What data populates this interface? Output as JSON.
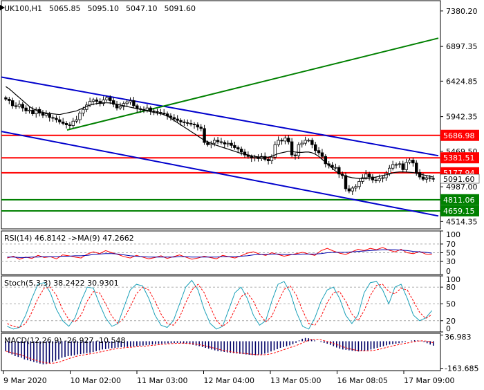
{
  "chart_data": [
    {
      "panel": "price",
      "type": "candlestick",
      "symbol": "UK100,H1",
      "ohlc_header": [
        "5065.85",
        "5095.10",
        "5047.10",
        "5091.60"
      ],
      "ylim": [
        4414,
        7520
      ],
      "y_ticks": [
        "7380.20",
        "6897.35",
        "6424.85",
        "5942.35",
        "5469.50",
        "4987.00",
        "4514.35"
      ],
      "current_price_label": "5091.60",
      "horizontal_levels": [
        {
          "value": 5686.98,
          "label": "5686.98",
          "color": "#ff0000"
        },
        {
          "value": 5381.51,
          "label": "5381.51",
          "color": "#ff0000"
        },
        {
          "value": 5177.94,
          "label": "5177.94",
          "color": "#ff0000"
        },
        {
          "value": 4811.06,
          "label": "4811.06",
          "color": "#008000"
        },
        {
          "value": 4659.15,
          "label": "4659.15",
          "color": "#008000"
        }
      ],
      "trendlines": [
        {
          "name": "channel-upper",
          "color": "#0000cc",
          "points": [
            [
              0,
              6480
            ],
            [
              632,
              5410
            ]
          ]
        },
        {
          "name": "channel-lower",
          "color": "#0000cc",
          "points": [
            [
              0,
              5740
            ],
            [
              632,
              4590
            ]
          ]
        },
        {
          "name": "support-rising",
          "color": "#008000",
          "points": [
            [
              95,
              5760
            ],
            [
              632,
              7010
            ]
          ]
        }
      ],
      "close_path": [
        6180,
        6160,
        6090,
        6080,
        6110,
        6060,
        6020,
        6030,
        5980,
        6040,
        5990,
        5960,
        5980,
        5930,
        5920,
        5900,
        5870,
        5850,
        5830,
        5820,
        5880,
        5900,
        5990,
        6040,
        6100,
        6150,
        6170,
        6150,
        6120,
        6170,
        6200,
        6160,
        6110,
        6060,
        6080,
        6120,
        6140,
        6160,
        6090,
        6050,
        6040,
        6030,
        6060,
        6020,
        6010,
        6000,
        5990,
        5980,
        5950,
        5930,
        5910,
        5890,
        5870,
        5860,
        5850,
        5840,
        5830,
        5800,
        5780,
        5590,
        5560,
        5580,
        5620,
        5600,
        5590,
        5570,
        5580,
        5550,
        5520,
        5500,
        5460,
        5420,
        5400,
        5380,
        5390,
        5370,
        5400,
        5360,
        5340,
        5390,
        5560,
        5620,
        5610,
        5650,
        5600,
        5420,
        5410,
        5560,
        5580,
        5620,
        5620,
        5560,
        5480,
        5450,
        5400,
        5300,
        5280,
        5250,
        5250,
        5160,
        5140,
        4960,
        4930,
        4970,
        4990,
        5060,
        5110,
        5160,
        5120,
        5080,
        5070,
        5100,
        5110,
        5170,
        5240,
        5290,
        5290,
        5300,
        5220,
        5320,
        5350,
        5310,
        5180,
        5120,
        5090,
        5110,
        5100,
        5090
      ],
      "moving_average_path": [
        6350,
        6320,
        6280,
        6240,
        6200,
        6160,
        6120,
        6080,
        6050,
        6030,
        6010,
        6000,
        5990,
        5985,
        5980,
        5975,
        5970,
        5980,
        5990,
        6000,
        6010,
        6020,
        6040,
        6060,
        6080,
        6100,
        6110,
        6120,
        6125,
        6130,
        6130,
        6128,
        6120,
        6110,
        6100,
        6090,
        6080,
        6070,
        6060,
        6050,
        6040,
        6030,
        6020,
        6010,
        6000,
        5990,
        5980,
        5970,
        5950,
        5920,
        5890,
        5860,
        5830,
        5800,
        5770,
        5740,
        5710,
        5680,
        5650,
        5620,
        5600,
        5580,
        5560,
        5545,
        5530,
        5515,
        5500,
        5485,
        5470,
        5455,
        5440,
        5430,
        5420,
        5410,
        5400,
        5395,
        5392,
        5390,
        5392,
        5400,
        5420,
        5440,
        5450,
        5460,
        5470,
        5470,
        5460,
        5455,
        5455,
        5460,
        5460,
        5450,
        5430,
        5400,
        5360,
        5320,
        5280,
        5240,
        5200,
        5170,
        5150,
        5130,
        5120,
        5110,
        5105,
        5100,
        5100,
        5100,
        5105,
        5110,
        5120,
        5130,
        5140,
        5150,
        5160,
        5175,
        5185,
        5190,
        5190,
        5188,
        5185,
        5180,
        5170,
        5160,
        5150,
        5140,
        5130,
        5120
      ]
    },
    {
      "panel": "rsi",
      "type": "line",
      "header_text": "RSI(14) 46.8142 ->MA(9) 47.2662",
      "ylim": [
        0,
        100
      ],
      "y_ticks": [
        "100",
        "70",
        "50",
        "30",
        "0"
      ],
      "levels": [
        70,
        50,
        30
      ],
      "series": [
        {
          "color": "#ff0000",
          "values": [
            38,
            42,
            35,
            40,
            37,
            44,
            39,
            41,
            36,
            45,
            43,
            40,
            38,
            47,
            52,
            48,
            55,
            50,
            46,
            41,
            38,
            44,
            40,
            36,
            39,
            43,
            37,
            41,
            45,
            40,
            35,
            38,
            42,
            39,
            36,
            44,
            41,
            38,
            43,
            49,
            52,
            47,
            44,
            50,
            46,
            42,
            45,
            48,
            51,
            47,
            44,
            55,
            60,
            54,
            49,
            46,
            52,
            58,
            55,
            60,
            57,
            62,
            56,
            52,
            58,
            50,
            48,
            53,
            47,
            46
          ]
        },
        {
          "color": "#0000aa",
          "values": [
            40,
            40,
            39,
            39,
            40,
            40,
            41,
            41,
            41,
            42,
            42,
            43,
            43,
            44,
            46,
            47,
            48,
            48,
            47,
            45,
            43,
            42,
            41,
            40,
            40,
            40,
            40,
            40,
            41,
            41,
            40,
            40,
            40,
            40,
            40,
            41,
            41,
            41,
            42,
            43,
            45,
            46,
            46,
            47,
            47,
            46,
            46,
            46,
            47,
            47,
            47,
            48,
            50,
            51,
            51,
            51,
            52,
            53,
            54,
            55,
            56,
            57,
            57,
            57,
            56,
            55,
            53,
            52,
            51,
            49
          ]
        }
      ]
    },
    {
      "panel": "stochastic",
      "type": "line",
      "header_text": "Stoch(5,3,3) 38.2422 30.9301",
      "ylim": [
        0,
        100
      ],
      "y_ticks": [
        "100",
        "80",
        "50",
        "20",
        "0"
      ],
      "levels": [
        80,
        50,
        20
      ],
      "series": [
        {
          "color": "#1aa0b8",
          "values": [
            10,
            5,
            8,
            30,
            60,
            85,
            88,
            70,
            40,
            20,
            10,
            25,
            55,
            80,
            78,
            50,
            25,
            10,
            15,
            45,
            75,
            85,
            82,
            60,
            30,
            12,
            8,
            20,
            50,
            80,
            92,
            75,
            40,
            15,
            5,
            10,
            40,
            70,
            80,
            60,
            30,
            12,
            20,
            55,
            85,
            90,
            70,
            35,
            10,
            5,
            25,
            55,
            75,
            80,
            60,
            30,
            15,
            30,
            70,
            88,
            90,
            75,
            50,
            80,
            85,
            60,
            30,
            20,
            25,
            38
          ]
        },
        {
          "color": "#ff0000",
          "values": [
            15,
            10,
            8,
            15,
            35,
            60,
            78,
            80,
            65,
            40,
            22,
            18,
            30,
            55,
            72,
            70,
            50,
            28,
            15,
            25,
            45,
            68,
            80,
            75,
            55,
            32,
            15,
            12,
            26,
            52,
            75,
            85,
            70,
            45,
            20,
            10,
            18,
            40,
            63,
            70,
            55,
            32,
            18,
            28,
            53,
            76,
            82,
            65,
            38,
            15,
            12,
            28,
            52,
            70,
            72,
            55,
            32,
            20,
            38,
            65,
            83,
            85,
            72,
            68,
            78,
            75,
            55,
            35,
            24,
            31
          ]
        }
      ]
    },
    {
      "panel": "macd",
      "type": "bar",
      "header_text": "MACD(12,26,9) -26.927 -10.548",
      "ylim": [
        -178,
        48
      ],
      "y_ticks": [
        "36.983",
        "-163.685"
      ],
      "histogram": [
        -60,
        -70,
        -80,
        -90,
        -95,
        -100,
        -110,
        -115,
        -120,
        -125,
        -130,
        -135,
        -140,
        -138,
        -132,
        -125,
        -118,
        -110,
        -100,
        -95,
        -90,
        -88,
        -85,
        -80,
        -78,
        -75,
        -72,
        -70,
        -65,
        -60,
        -55,
        -50,
        -48,
        -45,
        -42,
        -40,
        -38,
        -36,
        -35,
        -34,
        -33,
        -32,
        -30,
        -28,
        -26,
        -24,
        -22,
        -20,
        -18,
        -16,
        -15,
        -14,
        -13,
        -12,
        -11,
        -10,
        -12,
        -14,
        -16,
        -18,
        -22,
        -26,
        -30,
        -35,
        -40,
        -45,
        -50,
        -55,
        -60,
        -62,
        -65,
        -68,
        -70,
        -72,
        -74,
        -76,
        -78,
        -80,
        -82,
        -84,
        -85,
        -83,
        -80,
        -75,
        -70,
        -62,
        -55,
        -48,
        -40,
        -35,
        -30,
        -25,
        -18,
        -10,
        5,
        15,
        20,
        18,
        12,
        5,
        0,
        -5,
        -10,
        -15,
        -22,
        -30,
        -38,
        -45,
        -50,
        -52,
        -55,
        -58,
        -60,
        -62,
        -60,
        -58,
        -55,
        -50,
        -45,
        -40,
        -35,
        -30,
        -25,
        -20,
        -18,
        -15,
        -12,
        -8,
        -4,
        0,
        4,
        6,
        5,
        3,
        -5,
        -12,
        -20,
        -27
      ],
      "signal_color": "#ff0000"
    }
  ],
  "x_axis_labels": [
    "9 Mar 2020",
    "10 Mar 02:00",
    "11 Mar 03:00",
    "12 Mar 04:00",
    "13 Mar 05:00",
    "16 Mar 08:05",
    "17 Mar 09:00"
  ]
}
